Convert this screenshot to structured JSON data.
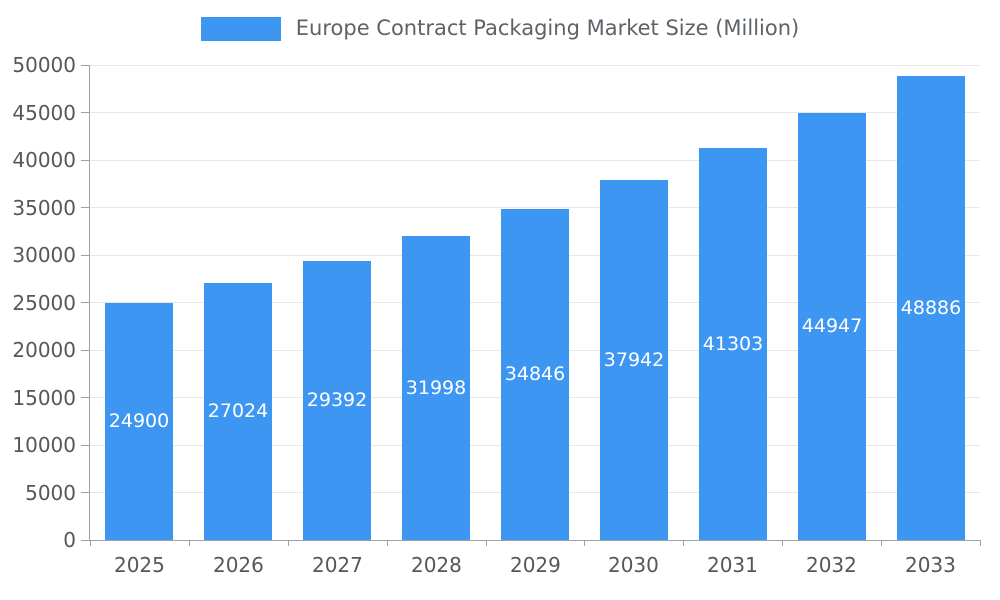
{
  "chart_data": {
    "type": "bar",
    "title": "Europe Contract Packaging Market Size (Million)",
    "categories": [
      "2025",
      "2026",
      "2027",
      "2028",
      "2029",
      "2030",
      "2031",
      "2032",
      "2033"
    ],
    "values": [
      24900,
      27024,
      29392,
      31998,
      34846,
      37942,
      41303,
      44947,
      48886
    ],
    "xlabel": "",
    "ylabel": "",
    "ylim": [
      0,
      50000
    ],
    "ytick_step": 5000,
    "yticks": [
      0,
      5000,
      10000,
      15000,
      20000,
      25000,
      30000,
      35000,
      40000,
      45000,
      50000
    ],
    "grid": true,
    "legend_position": "top",
    "value_labels": "inside-center",
    "bar_color": "#3d96f2",
    "value_label_color": "#ffffff",
    "axis_text_color": "#54585d",
    "grid_color": "#e8e8e8",
    "axis_line_color": "#9ba0a5"
  }
}
